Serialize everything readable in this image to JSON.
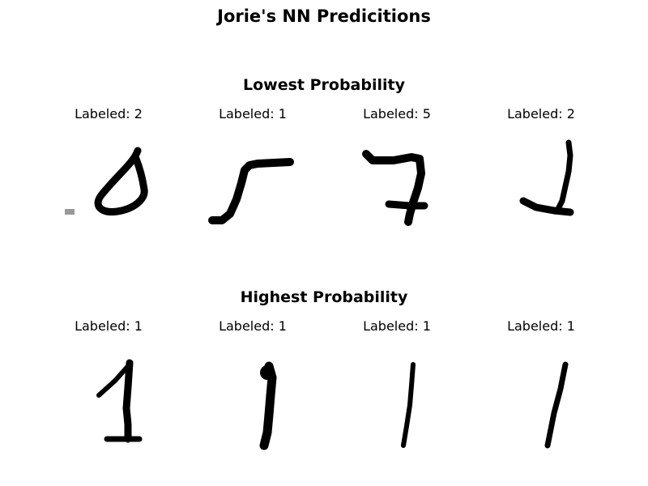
{
  "figure": {
    "title": "Jorie's NN Predicitions"
  },
  "sections": [
    {
      "title": "Lowest Probability",
      "panels": [
        {
          "label": "Labeled: 2",
          "glyph": "loop-digit"
        },
        {
          "label": "Labeled: 1",
          "glyph": "hook-digit"
        },
        {
          "label": "Labeled: 5",
          "glyph": "seven-like-digit"
        },
        {
          "label": "Labeled: 2",
          "glyph": "tall-hook-digit"
        }
      ]
    },
    {
      "title": "Highest Probability",
      "panels": [
        {
          "label": "Labeled: 1",
          "glyph": "one-with-base-digit"
        },
        {
          "label": "Labeled: 1",
          "glyph": "straight-one-digit"
        },
        {
          "label": "Labeled: 1",
          "glyph": "thin-one-digit"
        },
        {
          "label": "Labeled: 1",
          "glyph": "slanted-one-digit"
        }
      ]
    }
  ],
  "colors": {
    "ink": "#000000",
    "background": "#ffffff"
  }
}
